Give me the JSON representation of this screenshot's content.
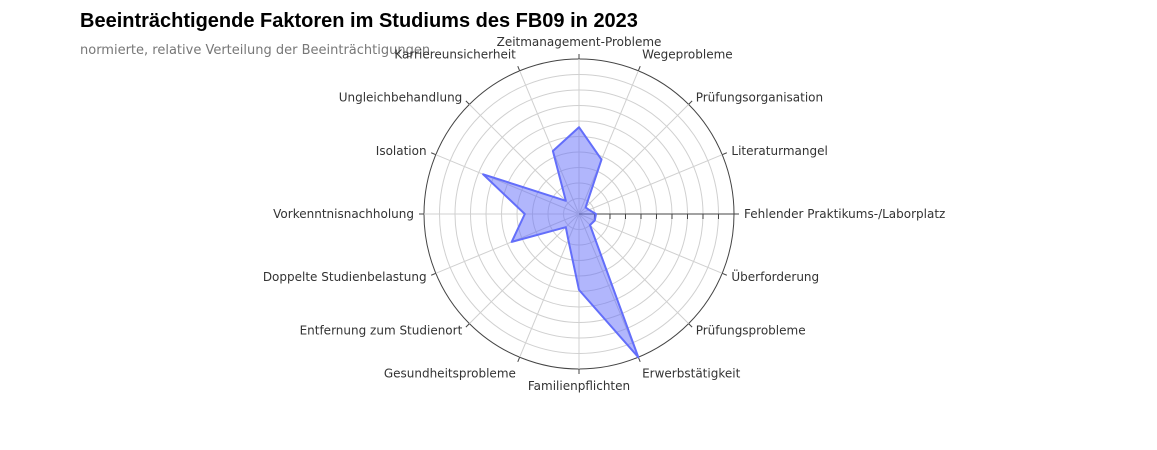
{
  "chart_data": {
    "type": "radar",
    "title": "Beeinträchtigende Faktoren im Studiums des FB09 in 2023",
    "subtitle": "normierte, relative Verteilung der Beeinträchtigungen",
    "categories": [
      "Fehlender Praktikums-/Laborplatz",
      "Literaturmangel",
      "Prüfungsorganisation",
      "Wegeprobleme",
      "Zeitmanagement-Probleme",
      "Karriereunsicherheit",
      "Ungleichbehandlung",
      "Isolation",
      "Vorkenntnisnachholung",
      "Doppelte Studienbelastung",
      "Entfernung zum Studienort",
      "Gesundheitsprobleme",
      "Familienpflichten",
      "Erwerbstätigkeit",
      "Prüfungsprobleme",
      "Überforderung"
    ],
    "values": [
      0.11,
      0.07,
      0.06,
      0.38,
      0.56,
      0.44,
      0.12,
      0.67,
      0.35,
      0.47,
      0.12,
      0.18,
      0.49,
      1.0,
      0.1,
      0.11
    ],
    "radial_range": [
      0,
      1
    ],
    "grid": true,
    "fill_color": "#636efa"
  }
}
